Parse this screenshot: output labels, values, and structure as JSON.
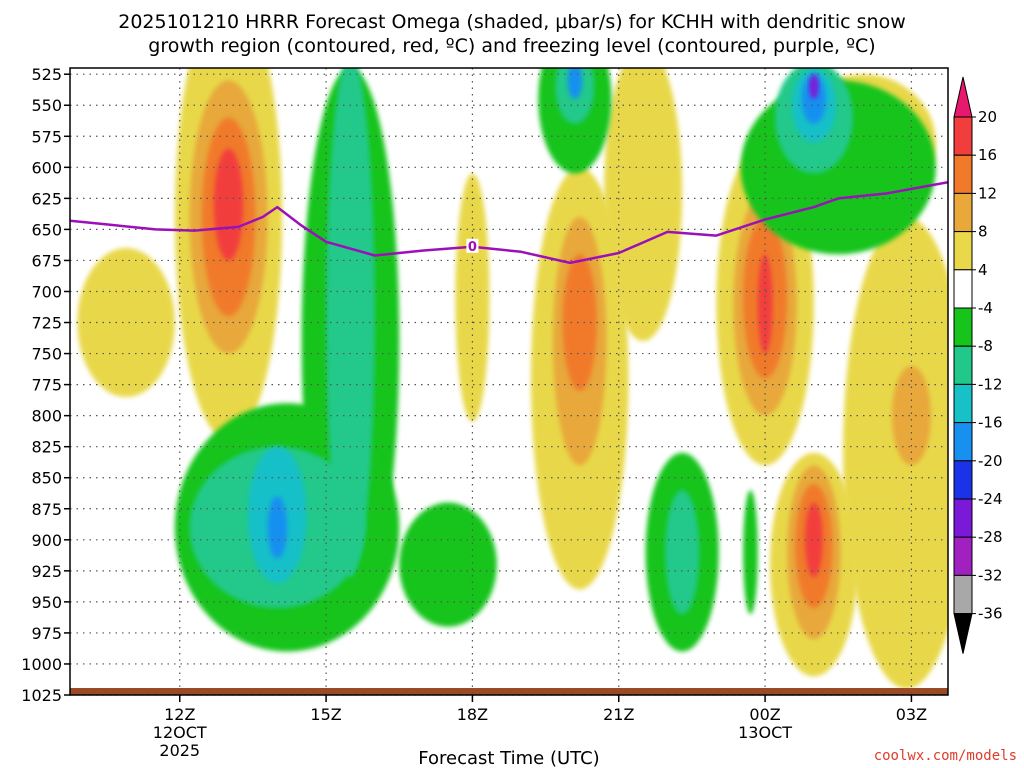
{
  "title": {
    "line1": "2025101210 HRRR Forecast Omega (shaded, μbar/s) for KCHH with dendritic snow",
    "line2": "growth region (contoured, red, ºC) and freezing level (contoured, purple, ºC)"
  },
  "xlabel": "Forecast Time (UTC)",
  "credit": "coolwx.com/models",
  "colors": {
    "freezing_line": "#9b10b8",
    "ground": "#9b4a26",
    "grid": "#555555"
  },
  "chart_data": {
    "type": "heatmap",
    "x_range_hours": [
      9.75,
      27.75
    ],
    "x_ticks": [
      {
        "hour": 12,
        "label": "12Z",
        "sub1": "12OCT",
        "sub2": "2025"
      },
      {
        "hour": 15,
        "label": "15Z",
        "sub1": "",
        "sub2": ""
      },
      {
        "hour": 18,
        "label": "18Z",
        "sub1": "",
        "sub2": ""
      },
      {
        "hour": 21,
        "label": "21Z",
        "sub1": "",
        "sub2": ""
      },
      {
        "hour": 24,
        "label": "00Z",
        "sub1": "13OCT",
        "sub2": ""
      },
      {
        "hour": 27,
        "label": "03Z",
        "sub1": "",
        "sub2": ""
      }
    ],
    "y_levels_mb": [
      525,
      550,
      575,
      600,
      625,
      650,
      675,
      700,
      725,
      750,
      775,
      800,
      825,
      850,
      875,
      900,
      925,
      950,
      975,
      1000,
      1025
    ],
    "y_range_mb": [
      520,
      1025
    ],
    "colorbar": {
      "labels": [
        "20",
        "16",
        "12",
        "8",
        "4",
        "-4",
        "-8",
        "-12",
        "-16",
        "-20",
        "-24",
        "-28",
        "-32",
        "-36"
      ],
      "colors": [
        "#e8186e",
        "#f23d3d",
        "#f07a2a",
        "#e8a83a",
        "#e8d84a",
        "#ffffff",
        "#16c41c",
        "#20c98a",
        "#18c0c8",
        "#1890f0",
        "#1a32e8",
        "#7a1ad8",
        "#a020c0",
        "#a8a8a8",
        "#000000"
      ]
    },
    "freezing_level": {
      "label": "0",
      "label_hour": 18,
      "points": [
        {
          "hour": 9.75,
          "mb": 643
        },
        {
          "hour": 10.5,
          "mb": 646
        },
        {
          "hour": 11.5,
          "mb": 650
        },
        {
          "hour": 12.3,
          "mb": 651
        },
        {
          "hour": 13.2,
          "mb": 648
        },
        {
          "hour": 13.7,
          "mb": 640
        },
        {
          "hour": 14.0,
          "mb": 632
        },
        {
          "hour": 14.5,
          "mb": 647
        },
        {
          "hour": 15.0,
          "mb": 660
        },
        {
          "hour": 16.0,
          "mb": 671
        },
        {
          "hour": 17.0,
          "mb": 667
        },
        {
          "hour": 18.0,
          "mb": 664
        },
        {
          "hour": 19.0,
          "mb": 668
        },
        {
          "hour": 20.0,
          "mb": 677
        },
        {
          "hour": 21.0,
          "mb": 669
        },
        {
          "hour": 22.0,
          "mb": 652
        },
        {
          "hour": 23.0,
          "mb": 655
        },
        {
          "hour": 24.0,
          "mb": 642
        },
        {
          "hour": 25.0,
          "mb": 632
        },
        {
          "hour": 25.5,
          "mb": 625
        },
        {
          "hour": 26.5,
          "mb": 621
        },
        {
          "hour": 27.75,
          "mb": 612
        }
      ]
    },
    "omega_blobs": [
      {
        "hour": 13.0,
        "mb": 640,
        "color": "#e8d84a",
        "rx": 1.1,
        "ry": 180
      },
      {
        "hour": 10.9,
        "mb": 725,
        "color": "#e8d84a",
        "rx": 1.0,
        "ry": 60
      },
      {
        "hour": 13.0,
        "mb": 640,
        "color": "#e8a83a",
        "rx": 0.8,
        "ry": 110
      },
      {
        "hour": 13.0,
        "mb": 640,
        "color": "#f07a2a",
        "rx": 0.55,
        "ry": 80
      },
      {
        "hour": 13.0,
        "mb": 630,
        "color": "#f23d3d",
        "rx": 0.3,
        "ry": 45
      },
      {
        "hour": 18.0,
        "mb": 705,
        "color": "#e8d84a",
        "rx": 0.35,
        "ry": 100
      },
      {
        "hour": 20.2,
        "mb": 770,
        "color": "#e8d84a",
        "rx": 1.0,
        "ry": 170
      },
      {
        "hour": 20.2,
        "mb": 740,
        "color": "#e8a83a",
        "rx": 0.55,
        "ry": 100
      },
      {
        "hour": 20.2,
        "mb": 725,
        "color": "#f07a2a",
        "rx": 0.35,
        "ry": 55
      },
      {
        "hour": 21.5,
        "mb": 620,
        "color": "#e8d84a",
        "rx": 0.8,
        "ry": 120
      },
      {
        "hour": 24.0,
        "mb": 710,
        "color": "#e8d84a",
        "rx": 1.0,
        "ry": 130
      },
      {
        "hour": 24.0,
        "mb": 710,
        "color": "#e8a83a",
        "rx": 0.65,
        "ry": 90
      },
      {
        "hour": 24.0,
        "mb": 705,
        "color": "#f07a2a",
        "rx": 0.45,
        "ry": 65
      },
      {
        "hour": 24.0,
        "mb": 710,
        "color": "#f23d3d",
        "rx": 0.15,
        "ry": 40
      },
      {
        "hour": 26.9,
        "mb": 830,
        "color": "#e8d84a",
        "rx": 1.3,
        "ry": 190
      },
      {
        "hour": 27.0,
        "mb": 800,
        "color": "#e8a83a",
        "rx": 0.4,
        "ry": 40
      },
      {
        "hour": 25.0,
        "mb": 920,
        "color": "#e8d84a",
        "rx": 0.9,
        "ry": 90
      },
      {
        "hour": 25.0,
        "mb": 910,
        "color": "#e8a83a",
        "rx": 0.55,
        "ry": 70
      },
      {
        "hour": 25.0,
        "mb": 905,
        "color": "#f07a2a",
        "rx": 0.38,
        "ry": 50
      },
      {
        "hour": 25.0,
        "mb": 900,
        "color": "#f23d3d",
        "rx": 0.18,
        "ry": 30
      },
      {
        "hour": 26.0,
        "mb": 580,
        "color": "#e8d84a",
        "rx": 1.5,
        "ry": 55
      },
      {
        "hour": 15.5,
        "mb": 740,
        "color": "#16c41c",
        "rx": 1.0,
        "ry": 220
      },
      {
        "hour": 14.2,
        "mb": 890,
        "color": "#16c41c",
        "rx": 2.3,
        "ry": 100
      },
      {
        "hour": 15.5,
        "mb": 720,
        "color": "#20c98a",
        "rx": 0.5,
        "ry": 210
      },
      {
        "hour": 14.0,
        "mb": 890,
        "color": "#20c98a",
        "rx": 1.8,
        "ry": 65
      },
      {
        "hour": 14.0,
        "mb": 880,
        "color": "#18c0c8",
        "rx": 0.6,
        "ry": 55
      },
      {
        "hour": 14.0,
        "mb": 890,
        "color": "#1890f0",
        "rx": 0.2,
        "ry": 25
      },
      {
        "hour": 17.5,
        "mb": 920,
        "color": "#16c41c",
        "rx": 1.0,
        "ry": 50
      },
      {
        "hour": 20.1,
        "mb": 545,
        "color": "#16c41c",
        "rx": 0.75,
        "ry": 60
      },
      {
        "hour": 20.1,
        "mb": 535,
        "color": "#20c98a",
        "rx": 0.4,
        "ry": 30
      },
      {
        "hour": 20.1,
        "mb": 530,
        "color": "#1890f0",
        "rx": 0.15,
        "ry": 15
      },
      {
        "hour": 22.3,
        "mb": 910,
        "color": "#16c41c",
        "rx": 0.75,
        "ry": 80
      },
      {
        "hour": 22.3,
        "mb": 910,
        "color": "#20c98a",
        "rx": 0.35,
        "ry": 50
      },
      {
        "hour": 23.7,
        "mb": 910,
        "color": "#16c41c",
        "rx": 0.15,
        "ry": 50
      },
      {
        "hour": 25.5,
        "mb": 600,
        "color": "#16c41c",
        "rx": 2.0,
        "ry": 70
      },
      {
        "hour": 25.0,
        "mb": 560,
        "color": "#20c98a",
        "rx": 0.8,
        "ry": 45
      },
      {
        "hour": 25.0,
        "mb": 550,
        "color": "#18c0c8",
        "rx": 0.45,
        "ry": 30
      },
      {
        "hour": 25.0,
        "mb": 545,
        "color": "#1890f0",
        "rx": 0.25,
        "ry": 20
      },
      {
        "hour": 25.0,
        "mb": 535,
        "color": "#7a1ad8",
        "rx": 0.1,
        "ry": 10
      }
    ]
  }
}
